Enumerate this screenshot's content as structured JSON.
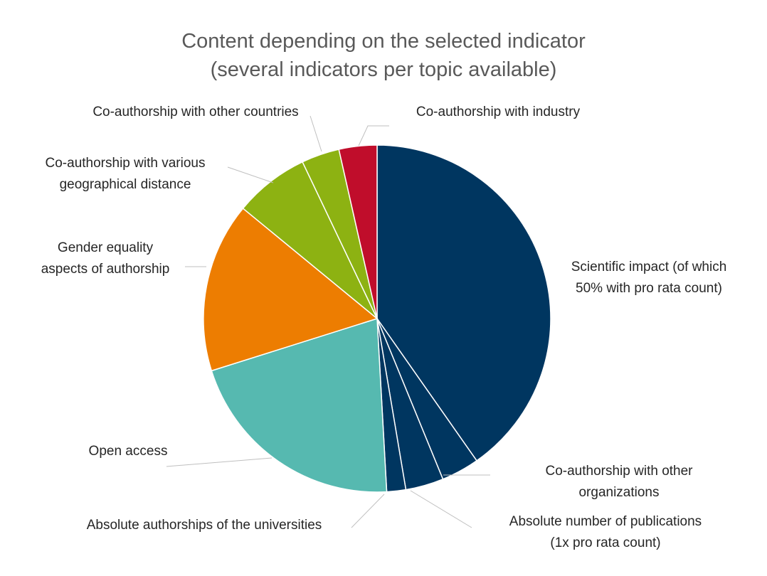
{
  "chart_data": {
    "type": "pie",
    "title_lines": [
      "Content depending on the selected indicator",
      "(several indicators per topic available)"
    ],
    "slices": [
      {
        "key": "scientific",
        "label_lines": [
          "Scientific impact (of which",
          "50% with pro rata count)"
        ],
        "value": 41.0,
        "color": "#003660"
      },
      {
        "key": "coorg",
        "label_lines": [
          "Co-authorship with other",
          "organizations"
        ],
        "value": 3.6,
        "color": "#003660"
      },
      {
        "key": "abspub",
        "label_lines": [
          "Absolute number of publications",
          "(1x pro rata count)"
        ],
        "value": 3.6,
        "color": "#003660"
      },
      {
        "key": "absauth",
        "label_lines": [
          "Absolute authorships of the universities"
        ],
        "value": 1.8,
        "color": "#003660"
      },
      {
        "key": "openaccess",
        "label_lines": [
          "Open access"
        ],
        "value": 21.4,
        "color": "#56b9b0"
      },
      {
        "key": "gender",
        "label_lines": [
          "Gender equality",
          "aspects of authorship"
        ],
        "value": 16.1,
        "color": "#ed7d01"
      },
      {
        "key": "geo",
        "label_lines": [
          "Co-authorship with various",
          "geographical distance"
        ],
        "value": 7.1,
        "color": "#8db212"
      },
      {
        "key": "countries",
        "label_lines": [
          "Co-authorship with other countries"
        ],
        "value": 3.6,
        "color": "#8db212"
      },
      {
        "key": "industry",
        "label_lines": [
          "Co-authorship with industry"
        ],
        "value": 3.6,
        "color": "#c00d2b"
      }
    ]
  }
}
